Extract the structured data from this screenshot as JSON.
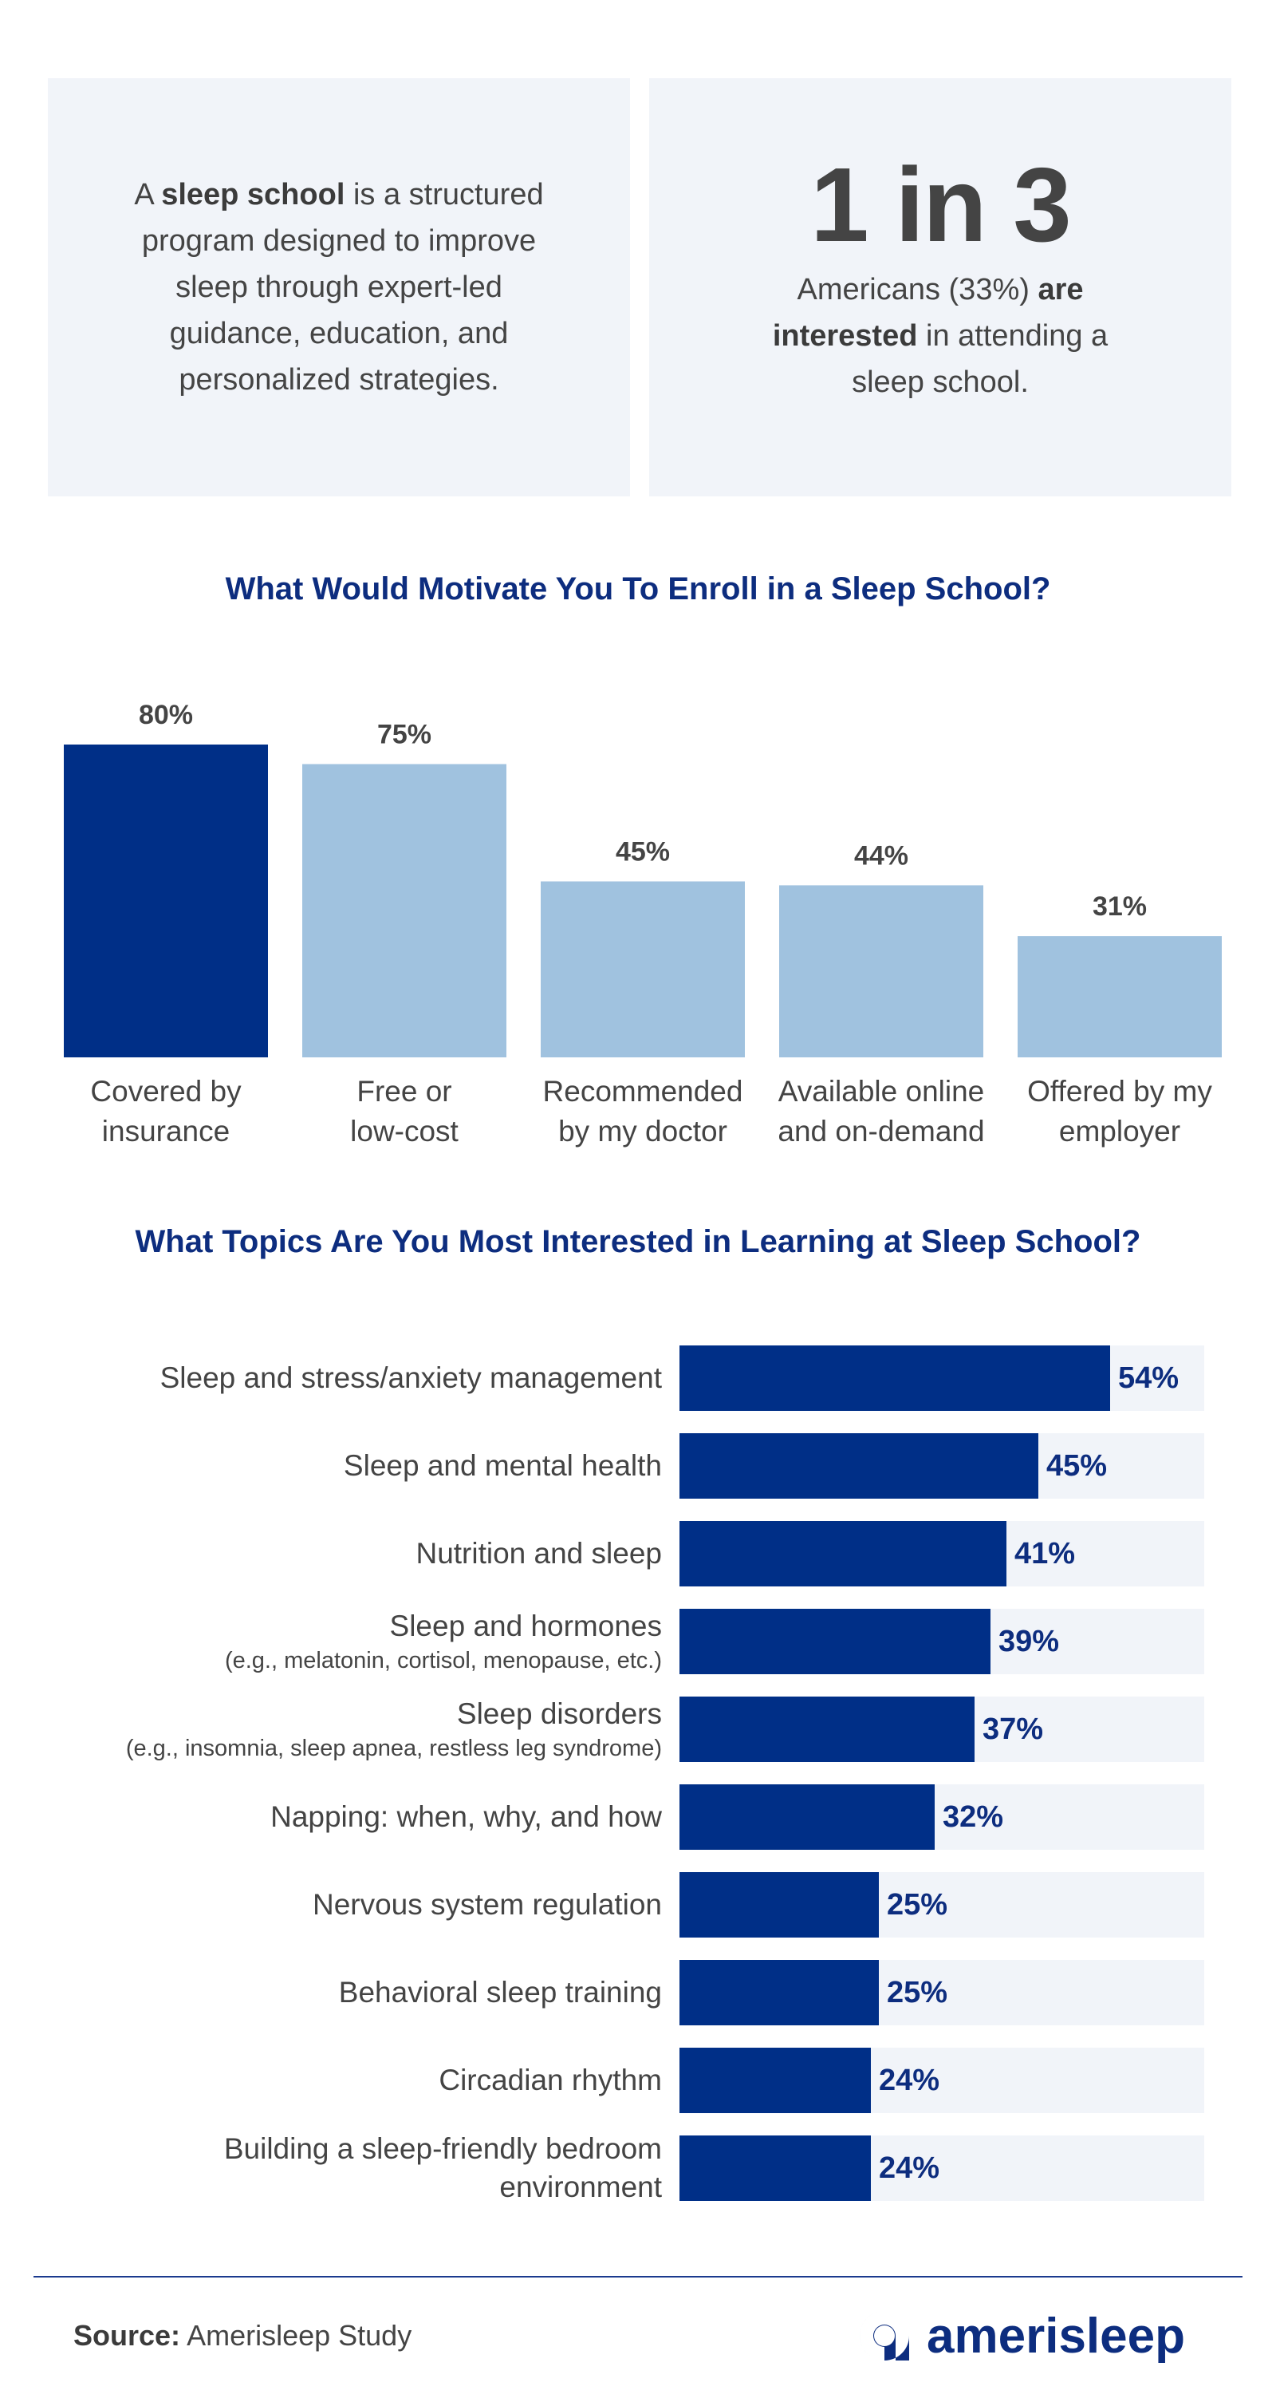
{
  "definition": {
    "pre": "A ",
    "bold": "sleep school",
    "post": " is a structured program designed to improve sleep through expert-led guidance, education, and personalized strategies."
  },
  "stat": {
    "big": "1 in 3",
    "pre": "Americans (33%) ",
    "bold": "are interested",
    "post": " in attending a sleep school."
  },
  "colors": {
    "dark_blue": "#002f87",
    "light_blue": "#a0c2df",
    "track": "#f1f4f9",
    "title_blue": "#0d2d7f"
  },
  "chart_data": [
    {
      "type": "bar",
      "title": "What Would Motivate You To Enroll in a Sleep School?",
      "categories": [
        [
          "Covered by",
          "insurance"
        ],
        [
          "Free or",
          "low-cost"
        ],
        [
          "Recommended",
          "by my doctor"
        ],
        [
          "Available online",
          "and on-demand"
        ],
        [
          "Offered by my",
          "employer"
        ]
      ],
      "values": [
        80,
        75,
        45,
        44,
        31
      ],
      "value_labels": [
        "80%",
        "75%",
        "45%",
        "44%",
        "31%"
      ],
      "highlight_index": 0,
      "grid": false
    },
    {
      "type": "bar",
      "orientation": "horizontal",
      "title": "What Topics Are You Most Interested in Learning at Sleep School?",
      "categories": [
        [
          "Sleep and stress/anxiety management"
        ],
        [
          "Sleep and mental health"
        ],
        [
          "Nutrition and sleep"
        ],
        [
          "Sleep and hormones",
          "(e.g., melatonin, cortisol, menopause, etc.)"
        ],
        [
          "Sleep disorders",
          "(e.g., insomnia, sleep apnea, restless leg syndrome)"
        ],
        [
          "Napping: when, why, and how"
        ],
        [
          "Nervous system regulation"
        ],
        [
          "Behavioral sleep training"
        ],
        [
          "Circadian rhythm"
        ],
        [
          "Building a sleep-friendly bedroom",
          "environment"
        ]
      ],
      "values": [
        54,
        45,
        41,
        39,
        37,
        32,
        25,
        25,
        24,
        24
      ],
      "value_labels": [
        "54%",
        "45%",
        "41%",
        "39%",
        "37%",
        "32%",
        "25%",
        "25%",
        "24%",
        "24%"
      ],
      "grid": false
    }
  ],
  "footer": {
    "source_label": "Source:",
    "source_text": " Amerisleep Study",
    "logo_text": "amerisleep",
    "logo_icon": "amerisleep-logo-icon"
  }
}
